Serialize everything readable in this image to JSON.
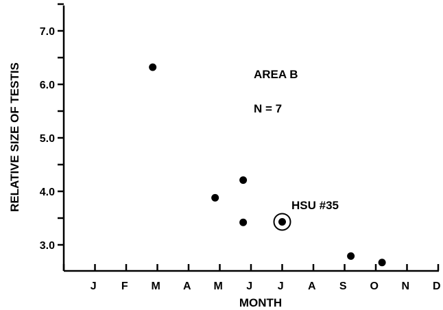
{
  "chart_data": {
    "type": "scatter",
    "title": "",
    "xlabel": "MONTH",
    "ylabel": "RELATIVE SIZE OF TESTIS",
    "x_categories": [
      "J",
      "F",
      "M",
      "A",
      "M",
      "J",
      "J",
      "A",
      "S",
      "O",
      "N",
      "D"
    ],
    "xlim": [
      0,
      12
    ],
    "ylim": [
      2.5,
      7.5
    ],
    "y_ticks": [
      {
        "value": 3.0,
        "label": "3.0"
      },
      {
        "value": 4.0,
        "label": "4.0"
      },
      {
        "value": 5.0,
        "label": "5.0"
      },
      {
        "value": 6.0,
        "label": "6.0"
      },
      {
        "value": 7.0,
        "label": "7.0"
      }
    ],
    "y_minor_ticks": [
      3.5,
      4.5,
      5.5,
      6.5,
      7.5
    ],
    "grid": false,
    "points": [
      {
        "x": 2.85,
        "y": 6.32
      },
      {
        "x": 4.85,
        "y": 3.88
      },
      {
        "x": 5.75,
        "y": 4.21
      },
      {
        "x": 5.75,
        "y": 3.42
      },
      {
        "x": 7.0,
        "y": 3.43,
        "highlight": true
      },
      {
        "x": 9.2,
        "y": 2.79
      },
      {
        "x": 10.2,
        "y": 2.67
      }
    ],
    "annotations": [
      {
        "id": "area",
        "text": "AREA B"
      },
      {
        "id": "n",
        "text": "N = 7"
      },
      {
        "id": "hsu",
        "text": "HSU #35"
      }
    ]
  }
}
